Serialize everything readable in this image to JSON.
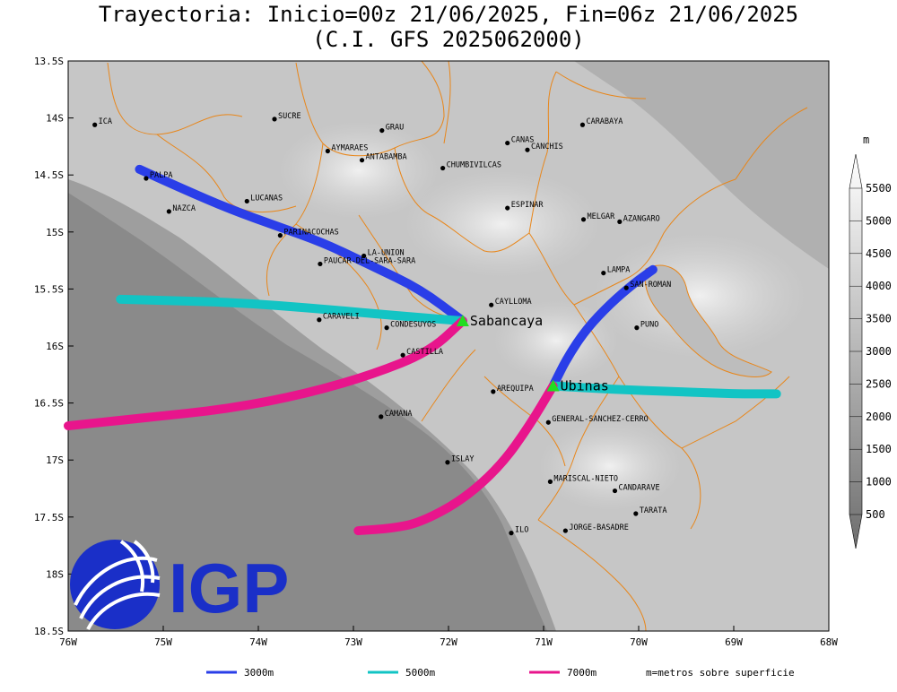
{
  "title_line1": "Trayectoria: Inicio=00z 21/06/2025, Fin=06z 21/06/2025",
  "title_line2": "(C.I. GFS 2025062000)",
  "map": {
    "lon_range": [
      -76,
      -68
    ],
    "lat_range": [
      -18.5,
      -13.5
    ],
    "lat_ticks": [
      {
        "lat": -13.5,
        "label": "13.5S"
      },
      {
        "lat": -14,
        "label": "14S"
      },
      {
        "lat": -14.5,
        "label": "14.5S"
      },
      {
        "lat": -15,
        "label": "15S"
      },
      {
        "lat": -15.5,
        "label": "15.5S"
      },
      {
        "lat": -16,
        "label": "16S"
      },
      {
        "lat": -16.5,
        "label": "16.5S"
      },
      {
        "lat": -17,
        "label": "17S"
      },
      {
        "lat": -17.5,
        "label": "17.5S"
      },
      {
        "lat": -18,
        "label": "18S"
      },
      {
        "lat": -18.5,
        "label": "18.5S"
      }
    ],
    "lon_ticks": [
      {
        "lon": -76,
        "label": "76W"
      },
      {
        "lon": -75,
        "label": "75W"
      },
      {
        "lon": -74,
        "label": "74W"
      },
      {
        "lon": -73,
        "label": "73W"
      },
      {
        "lon": -72,
        "label": "72W"
      },
      {
        "lon": -71,
        "label": "71W"
      },
      {
        "lon": -70,
        "label": "70W"
      },
      {
        "lon": -69,
        "label": "69W"
      },
      {
        "lon": -68,
        "label": "68W"
      }
    ]
  },
  "cities": [
    {
      "name": "ICA",
      "lon": -75.72,
      "lat": -14.06
    },
    {
      "name": "SUCRE",
      "lon": -73.83,
      "lat": -14.01
    },
    {
      "name": "GRAU",
      "lon": -72.7,
      "lat": -14.11
    },
    {
      "name": "AYMARAES",
      "lon": -73.27,
      "lat": -14.29
    },
    {
      "name": "ANTABAMBA",
      "lon": -72.91,
      "lat": -14.37
    },
    {
      "name": "CANAS",
      "lon": -71.38,
      "lat": -14.22
    },
    {
      "name": "CANCHIS",
      "lon": -71.17,
      "lat": -14.28
    },
    {
      "name": "CARABAYA",
      "lon": -70.59,
      "lat": -14.06
    },
    {
      "name": "CHUMBIVILCAS",
      "lon": -72.06,
      "lat": -14.44
    },
    {
      "name": "PALPA",
      "lon": -75.18,
      "lat": -14.53
    },
    {
      "name": "LUCANAS",
      "lon": -74.12,
      "lat": -14.73
    },
    {
      "name": "NAZCA",
      "lon": -74.94,
      "lat": -14.82
    },
    {
      "name": "ESPINAR",
      "lon": -71.38,
      "lat": -14.79
    },
    {
      "name": "MELGAR",
      "lon": -70.58,
      "lat": -14.89
    },
    {
      "name": "AZANGARO",
      "lon": -70.2,
      "lat": -14.91
    },
    {
      "name": "PARINACOCHAS",
      "lon": -73.77,
      "lat": -15.03
    },
    {
      "name": "LA-UNION",
      "lon": -72.89,
      "lat": -15.21
    },
    {
      "name": "PAUCAR-DEL-SARA-SARA",
      "lon": -73.35,
      "lat": -15.28
    },
    {
      "name": "LAMPA",
      "lon": -70.37,
      "lat": -15.36
    },
    {
      "name": "SAN-ROMAN",
      "lon": -70.13,
      "lat": -15.49
    },
    {
      "name": "CAYLLOMA",
      "lon": -71.55,
      "lat": -15.64
    },
    {
      "name": "CARAVELI",
      "lon": -73.36,
      "lat": -15.77
    },
    {
      "name": "CONDESUYOS",
      "lon": -72.65,
      "lat": -15.84
    },
    {
      "name": "PUNO",
      "lon": -70.02,
      "lat": -15.84
    },
    {
      "name": "CASTILLA",
      "lon": -72.48,
      "lat": -16.08
    },
    {
      "name": "AREQUIPA",
      "lon": -71.53,
      "lat": -16.4
    },
    {
      "name": "GENERAL-SANCHEZ-CERRO",
      "lon": -70.95,
      "lat": -16.67
    },
    {
      "name": "CAMANA",
      "lon": -72.71,
      "lat": -16.62
    },
    {
      "name": "ISLAY",
      "lon": -72.01,
      "lat": -17.02
    },
    {
      "name": "MARISCAL-NIETO",
      "lon": -70.93,
      "lat": -17.19
    },
    {
      "name": "CANDARAVE",
      "lon": -70.25,
      "lat": -17.27
    },
    {
      "name": "TARATA",
      "lon": -70.03,
      "lat": -17.47
    },
    {
      "name": "ILO",
      "lon": -71.34,
      "lat": -17.64
    },
    {
      "name": "JORGE-BASADRE",
      "lon": -70.77,
      "lat": -17.62
    }
  ],
  "volcanoes": [
    {
      "name": "Sabancaya",
      "lon": -71.85,
      "lat": -15.78
    },
    {
      "name": "Ubinas",
      "lon": -70.9,
      "lat": -16.35
    }
  ],
  "trajectories": [
    {
      "level": "3000m",
      "color": "#2a3ee8",
      "path": [
        [
          -71.85,
          -15.78
        ],
        [
          -72.3,
          -15.5
        ],
        [
          -72.8,
          -15.3
        ],
        [
          -73.3,
          -15.1
        ],
        [
          -73.8,
          -14.95
        ],
        [
          -74.3,
          -14.8
        ],
        [
          -74.8,
          -14.62
        ],
        [
          -75.25,
          -14.45
        ]
      ]
    },
    {
      "level": "3000m",
      "color": "#2a3ee8",
      "path": [
        [
          -70.9,
          -16.35
        ],
        [
          -70.75,
          -16.1
        ],
        [
          -70.55,
          -15.85
        ],
        [
          -70.3,
          -15.63
        ],
        [
          -70.05,
          -15.45
        ],
        [
          -69.85,
          -15.33
        ]
      ]
    },
    {
      "level": "5000m",
      "color": "#12c4c4",
      "path": [
        [
          -71.85,
          -15.78
        ],
        [
          -72.6,
          -15.73
        ],
        [
          -73.4,
          -15.67
        ],
        [
          -74.2,
          -15.62
        ],
        [
          -75.0,
          -15.6
        ],
        [
          -75.45,
          -15.59
        ]
      ]
    },
    {
      "level": "5000m",
      "color": "#12c4c4",
      "path": [
        [
          -70.9,
          -16.35
        ],
        [
          -70.3,
          -16.38
        ],
        [
          -69.6,
          -16.4
        ],
        [
          -69.0,
          -16.42
        ],
        [
          -68.55,
          -16.42
        ]
      ]
    },
    {
      "level": "7000m",
      "color": "#e8158c",
      "path": [
        [
          -71.85,
          -15.78
        ],
        [
          -72.2,
          -16.05
        ],
        [
          -72.8,
          -16.25
        ],
        [
          -73.5,
          -16.42
        ],
        [
          -74.3,
          -16.55
        ],
        [
          -75.2,
          -16.63
        ],
        [
          -76.0,
          -16.7
        ]
      ]
    },
    {
      "level": "7000m",
      "color": "#e8158c",
      "path": [
        [
          -70.9,
          -16.35
        ],
        [
          -71.15,
          -16.7
        ],
        [
          -71.45,
          -17.05
        ],
        [
          -71.85,
          -17.35
        ],
        [
          -72.3,
          -17.55
        ],
        [
          -72.6,
          -17.6
        ],
        [
          -72.95,
          -17.62
        ]
      ]
    }
  ],
  "colorbar": {
    "unit": "m",
    "labels": [
      "5500",
      "5000",
      "4500",
      "4000",
      "3500",
      "3000",
      "2500",
      "2000",
      "1500",
      "1000",
      "500"
    ]
  },
  "legend": {
    "items": [
      {
        "label": "3000m",
        "color": "#2a3ee8"
      },
      {
        "label": "5000m",
        "color": "#12c4c4"
      },
      {
        "label": "7000m",
        "color": "#e8158c"
      }
    ],
    "note": "m=metros sobre superficie"
  },
  "logo": {
    "text": "IGP",
    "color": "#1a2fc8"
  }
}
